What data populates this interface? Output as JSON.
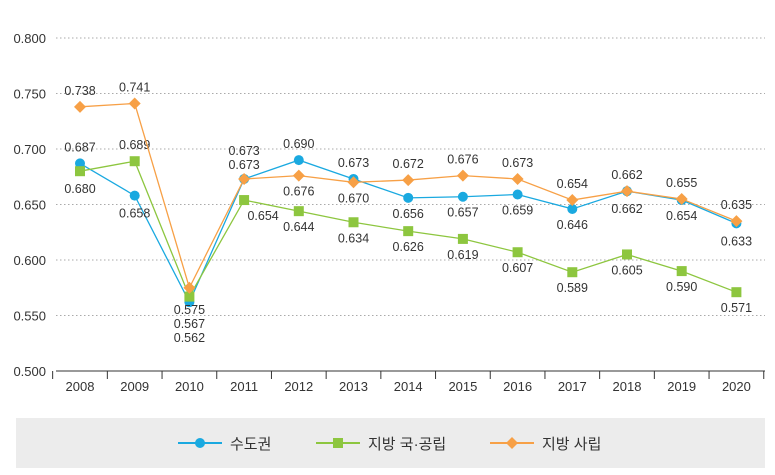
{
  "chart_data": {
    "type": "line",
    "title": "",
    "xlabel": "",
    "ylabel": "",
    "ylim": [
      0.5,
      0.8
    ],
    "yticks": [
      "0.500",
      "0.550",
      "0.600",
      "0.650",
      "0.700",
      "0.750",
      "0.800"
    ],
    "grid": true,
    "legend_position": "bottom",
    "categories": [
      "2008",
      "2009",
      "2010",
      "2011",
      "2012",
      "2013",
      "2014",
      "2015",
      "2016",
      "2017",
      "2018",
      "2019",
      "2020"
    ],
    "series": [
      {
        "name": "수도권",
        "color": "#1aa9e0",
        "marker": "circle",
        "values": [
          0.687,
          0.658,
          0.562,
          0.673,
          0.69,
          0.673,
          0.656,
          0.657,
          0.659,
          0.646,
          0.662,
          0.654,
          0.633
        ]
      },
      {
        "name": "지방 국·공립",
        "color": "#8dc63f",
        "marker": "square",
        "values": [
          0.68,
          0.689,
          0.567,
          0.654,
          0.644,
          0.634,
          0.626,
          0.619,
          0.607,
          0.589,
          0.605,
          0.59,
          0.571
        ]
      },
      {
        "name": "지방 사립",
        "color": "#f7a046",
        "marker": "diamond",
        "values": [
          0.738,
          0.741,
          0.575,
          0.673,
          0.676,
          0.67,
          0.672,
          0.676,
          0.673,
          0.654,
          0.662,
          0.655,
          0.635
        ]
      }
    ]
  }
}
